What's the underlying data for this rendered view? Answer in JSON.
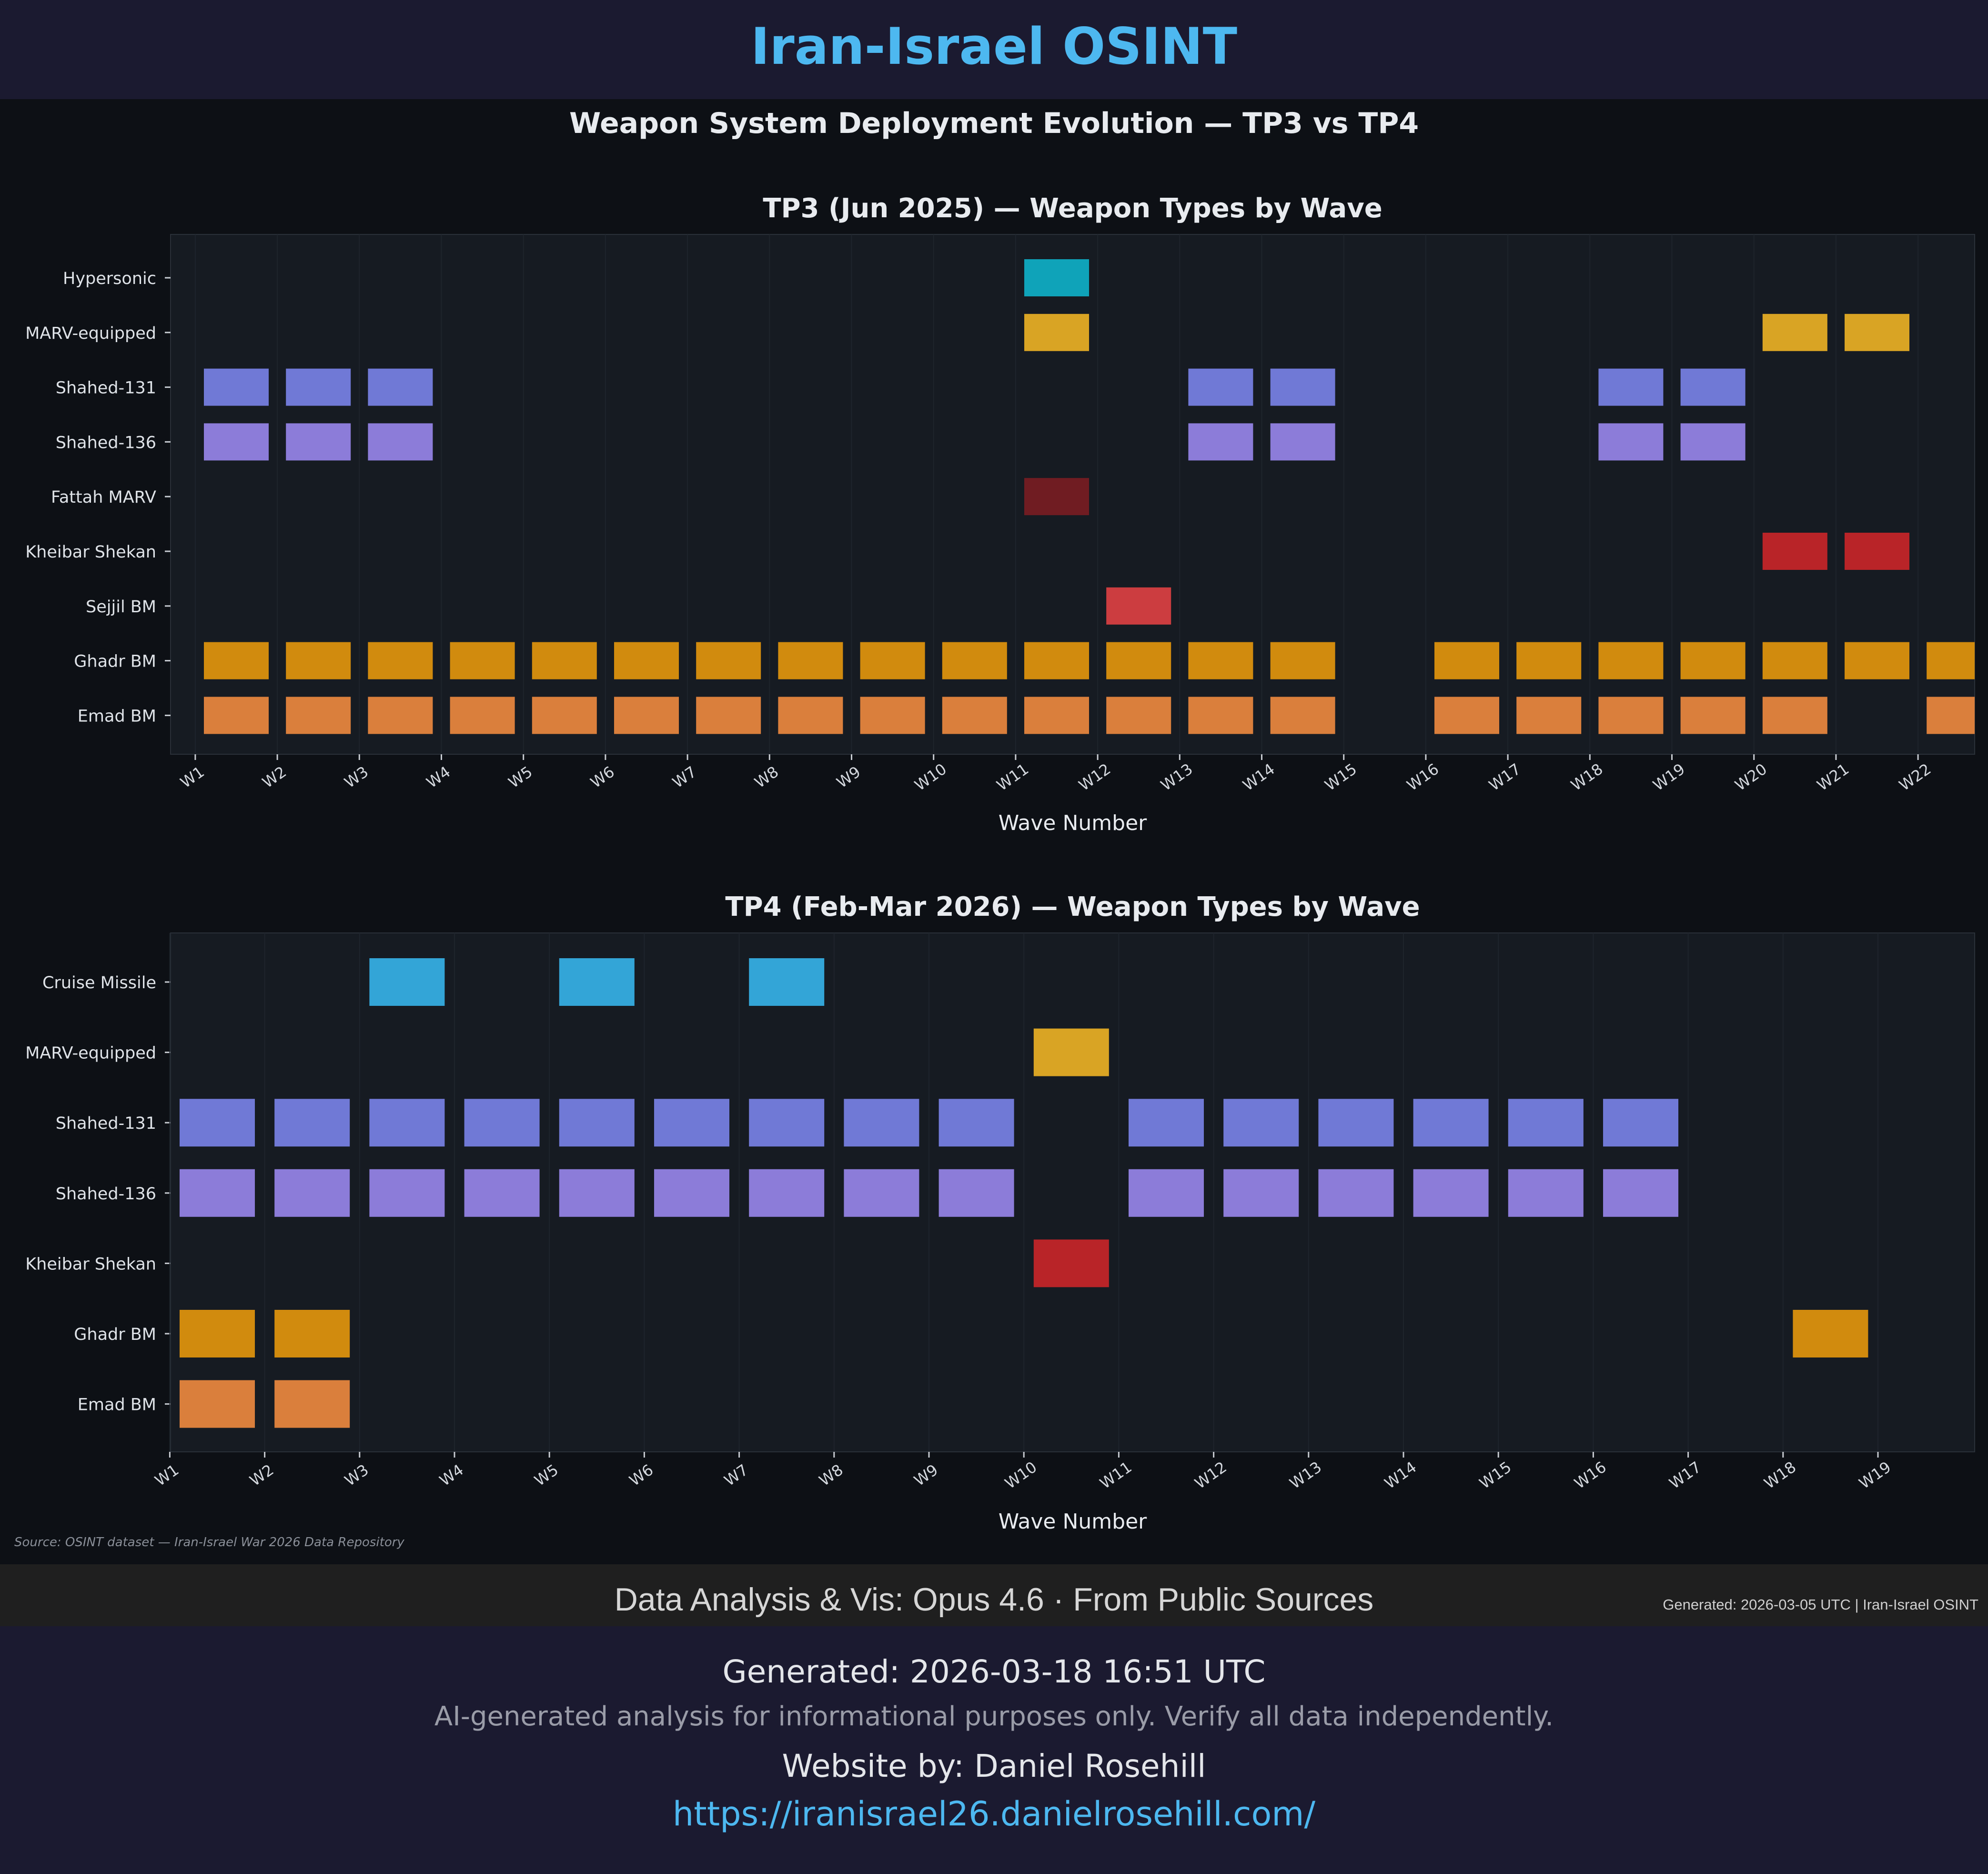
{
  "header": {
    "title": "Iran-Israel OSINT"
  },
  "figure_title": "Weapon System Deployment Evolution — TP3 vs TP4",
  "colors": {
    "Hypersonic": "#0fa3b9",
    "MARV-equipped": "#d9a424",
    "Shahed-131": "#7079d6",
    "Shahed-136": "#8c7cd9",
    "Fattah MARV": "#701c22",
    "Kheibar Shekan": "#b92428",
    "Sejjil BM": "#cc3d40",
    "Ghadr BM": "#d18b0e",
    "Emad BM": "#da7f3c",
    "Cruise Missile": "#33a5d7"
  },
  "chart_data": [
    {
      "type": "heatmap",
      "title": "TP3 (Jun 2025) — Weapon Types by Wave",
      "xlabel": "Wave Number",
      "x_ticks": [
        "W1",
        "W2",
        "W3",
        "W4",
        "W5",
        "W6",
        "W7",
        "W8",
        "W9",
        "W10",
        "W11",
        "W12",
        "W13",
        "W14",
        "W15",
        "W16",
        "W17",
        "W18",
        "W19",
        "W20",
        "W21",
        "W22"
      ],
      "rows": [
        "Hypersonic",
        "MARV-equipped",
        "Shahed-131",
        "Shahed-136",
        "Fattah MARV",
        "Kheibar Shekan",
        "Sejjil BM",
        "Ghadr BM",
        "Emad BM"
      ],
      "presence": {
        "Hypersonic": [
          11
        ],
        "MARV-equipped": [
          11,
          20,
          21
        ],
        "Shahed-131": [
          1,
          2,
          3,
          13,
          14,
          18,
          19
        ],
        "Shahed-136": [
          1,
          2,
          3,
          13,
          14,
          18,
          19
        ],
        "Fattah MARV": [
          11
        ],
        "Kheibar Shekan": [
          20,
          21
        ],
        "Sejjil BM": [
          12
        ],
        "Ghadr BM": [
          1,
          2,
          3,
          4,
          5,
          6,
          7,
          8,
          9,
          10,
          11,
          12,
          13,
          14,
          16,
          17,
          18,
          19,
          20,
          21,
          22
        ],
        "Emad BM": [
          1,
          2,
          3,
          4,
          5,
          6,
          7,
          8,
          9,
          10,
          11,
          12,
          13,
          14,
          16,
          17,
          18,
          19,
          20,
          22
        ]
      }
    },
    {
      "type": "heatmap",
      "title": "TP4 (Feb-Mar 2026) — Weapon Types by Wave",
      "xlabel": "Wave Number",
      "x_ticks": [
        "W1",
        "W2",
        "W3",
        "W4",
        "W5",
        "W6",
        "W7",
        "W8",
        "W9",
        "W10",
        "W11",
        "W12",
        "W13",
        "W14",
        "W15",
        "W16",
        "W17",
        "W18",
        "W19"
      ],
      "rows": [
        "Cruise Missile",
        "MARV-equipped",
        "Shahed-131",
        "Shahed-136",
        "Kheibar Shekan",
        "Ghadr BM",
        "Emad BM"
      ],
      "presence": {
        "Cruise Missile": [
          3,
          5,
          7
        ],
        "MARV-equipped": [
          10
        ],
        "Shahed-131": [
          1,
          2,
          3,
          4,
          5,
          6,
          7,
          8,
          9,
          11,
          12,
          13,
          14,
          15,
          16
        ],
        "Shahed-136": [
          1,
          2,
          3,
          4,
          5,
          6,
          7,
          8,
          9,
          11,
          12,
          13,
          14,
          15,
          16
        ],
        "Kheibar Shekan": [
          10
        ],
        "Ghadr BM": [
          1,
          2,
          18
        ],
        "Emad BM": [
          1,
          2
        ]
      }
    }
  ],
  "source_note": "Source: OSINT dataset — Iran-Israel War 2026 Data Repository",
  "credit_bar": {
    "text": "Data Analysis & Vis: Opus 4.6 · From Public Sources",
    "generated": "Generated: 2026-03-05 UTC | Iran-Israel OSINT"
  },
  "footer": {
    "generated": "Generated: 2026-03-18 16:51 UTC",
    "disclaimer": "AI-generated analysis for informational purposes only. Verify all data independently.",
    "website_by": "Website by: Daniel Rosehill",
    "url": "https://iranisrael26.danielrosehill.com/"
  }
}
